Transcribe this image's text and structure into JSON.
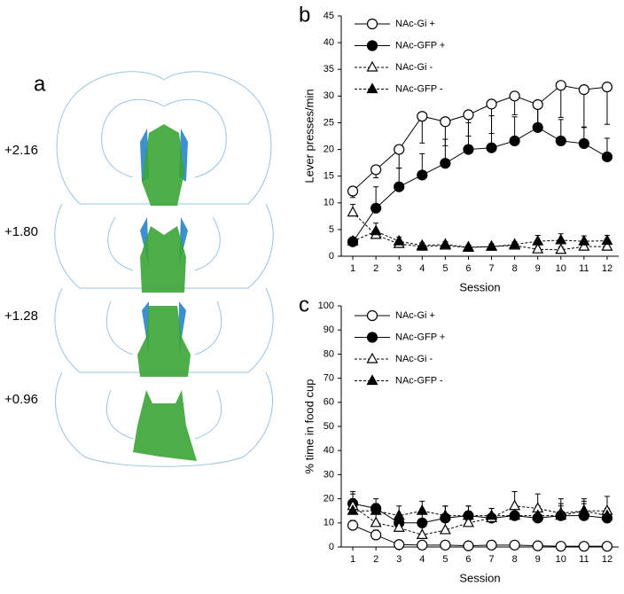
{
  "panel_a": {
    "label": "a",
    "sections": [
      "+2.16",
      "+1.80",
      "+1.28",
      "+0.96"
    ]
  },
  "chart_data": [
    {
      "type": "line",
      "panel_label": "b",
      "x_label": "Session",
      "y_label": "Lever presses/min",
      "x": [
        1,
        2,
        3,
        4,
        5,
        6,
        7,
        8,
        9,
        10,
        11,
        12
      ],
      "xlim": [
        0.5,
        12.5
      ],
      "xticks": [
        1,
        2,
        3,
        4,
        5,
        6,
        7,
        8,
        9,
        10,
        11,
        12
      ],
      "ylim": [
        0,
        45
      ],
      "yticks": [
        0,
        5,
        10,
        15,
        20,
        25,
        30,
        35,
        40,
        45
      ],
      "series": [
        {
          "name": "NAc-Gi +",
          "color": "#000000",
          "fill": "#ffffff",
          "marker": "circle",
          "line_style": "solid",
          "error_direction": "down",
          "values": [
            12.2,
            16.2,
            20,
            26.2,
            25.2,
            26.5,
            28.5,
            30,
            28.4,
            32,
            31.2,
            31.7
          ],
          "errors": [
            1.2,
            1.5,
            3.5,
            5,
            4.5,
            4,
            5.5,
            3.5,
            4.5,
            6,
            7,
            7
          ]
        },
        {
          "name": "NAc-GFP +",
          "color": "#000000",
          "fill": "#000000",
          "marker": "circle",
          "line_style": "solid",
          "error_direction": "up",
          "values": [
            2.7,
            9,
            13,
            15.2,
            17.4,
            20,
            20.3,
            21.6,
            24.1,
            21.6,
            21.1,
            18.6
          ],
          "errors": [
            0.5,
            4,
            3.5,
            4,
            4.5,
            5,
            6,
            4.5,
            3.5,
            4,
            3,
            3.5
          ]
        },
        {
          "name": "NAc-Gi -",
          "color": "#000000",
          "fill": "#ffffff",
          "marker": "triangle",
          "line_style": "dashed",
          "error_direction": "up",
          "values": [
            8.2,
            4,
            2.3,
            1.8,
            2,
            1.6,
            1.8,
            2,
            1.3,
            1.2,
            1.8,
            1.8
          ],
          "errors": [
            1.5,
            1,
            0.7,
            0.5,
            0.5,
            0.5,
            0.5,
            0.5,
            0.5,
            0.5,
            0.5,
            0.5
          ]
        },
        {
          "name": "NAc-GFP -",
          "color": "#000000",
          "fill": "#000000",
          "marker": "triangle",
          "line_style": "dashed",
          "error_direction": "up",
          "values": [
            2.8,
            4.7,
            2.8,
            2,
            2.2,
            1.7,
            1.8,
            2.2,
            2.8,
            3,
            2.8,
            2.9
          ],
          "errors": [
            0.8,
            1.5,
            0.8,
            0.5,
            0.5,
            0.4,
            0.5,
            0.5,
            1.1,
            1.2,
            1,
            1
          ]
        }
      ]
    },
    {
      "type": "line",
      "panel_label": "c",
      "x_label": "Session",
      "y_label": "% time in food cup",
      "x": [
        1,
        2,
        3,
        4,
        5,
        6,
        7,
        8,
        9,
        10,
        11,
        12
      ],
      "xlim": [
        0.5,
        12.5
      ],
      "xticks": [
        1,
        2,
        3,
        4,
        5,
        6,
        7,
        8,
        9,
        10,
        11,
        12
      ],
      "ylim": [
        0,
        100
      ],
      "yticks": [
        0,
        10,
        20,
        30,
        40,
        50,
        60,
        70,
        80,
        90,
        100
      ],
      "series": [
        {
          "name": "NAc-Gi +",
          "color": "#000000",
          "fill": "#ffffff",
          "marker": "circle",
          "line_style": "solid",
          "error_direction": "up",
          "values": [
            9,
            5,
            1,
            0.8,
            0.8,
            0.5,
            0.8,
            0.8,
            0.5,
            0.3,
            0.3,
            0.3
          ],
          "errors": [
            2,
            2,
            0.5,
            0.5,
            0.5,
            0.5,
            0.5,
            0.5,
            0.5,
            0.5,
            0.5,
            0.5
          ]
        },
        {
          "name": "NAc-GFP +",
          "color": "#000000",
          "fill": "#000000",
          "marker": "circle",
          "line_style": "solid",
          "error_direction": "up",
          "values": [
            18,
            16,
            10,
            10,
            12,
            13,
            12,
            13,
            12,
            13,
            13,
            12
          ],
          "errors": [
            5,
            4,
            3,
            4,
            5,
            4,
            4,
            4,
            4,
            5,
            5,
            4
          ]
        },
        {
          "name": "NAc-Gi -",
          "color": "#000000",
          "fill": "#ffffff",
          "marker": "triangle",
          "line_style": "dashed",
          "error_direction": "up",
          "values": [
            17,
            10,
            8,
            5,
            7,
            10,
            12,
            17,
            16,
            14,
            15,
            15
          ],
          "errors": [
            5,
            5,
            4,
            4,
            4,
            3,
            4,
            6,
            6,
            6,
            5,
            6
          ]
        },
        {
          "name": "NAc-GFP -",
          "color": "#000000",
          "fill": "#000000",
          "marker": "triangle",
          "line_style": "dashed",
          "error_direction": "up",
          "values": [
            15,
            15,
            13,
            15,
            13,
            13,
            13,
            13,
            13,
            13,
            15,
            13
          ],
          "errors": [
            5,
            3,
            4,
            4,
            4,
            4,
            3,
            4,
            4,
            4,
            4,
            3
          ]
        }
      ]
    }
  ]
}
